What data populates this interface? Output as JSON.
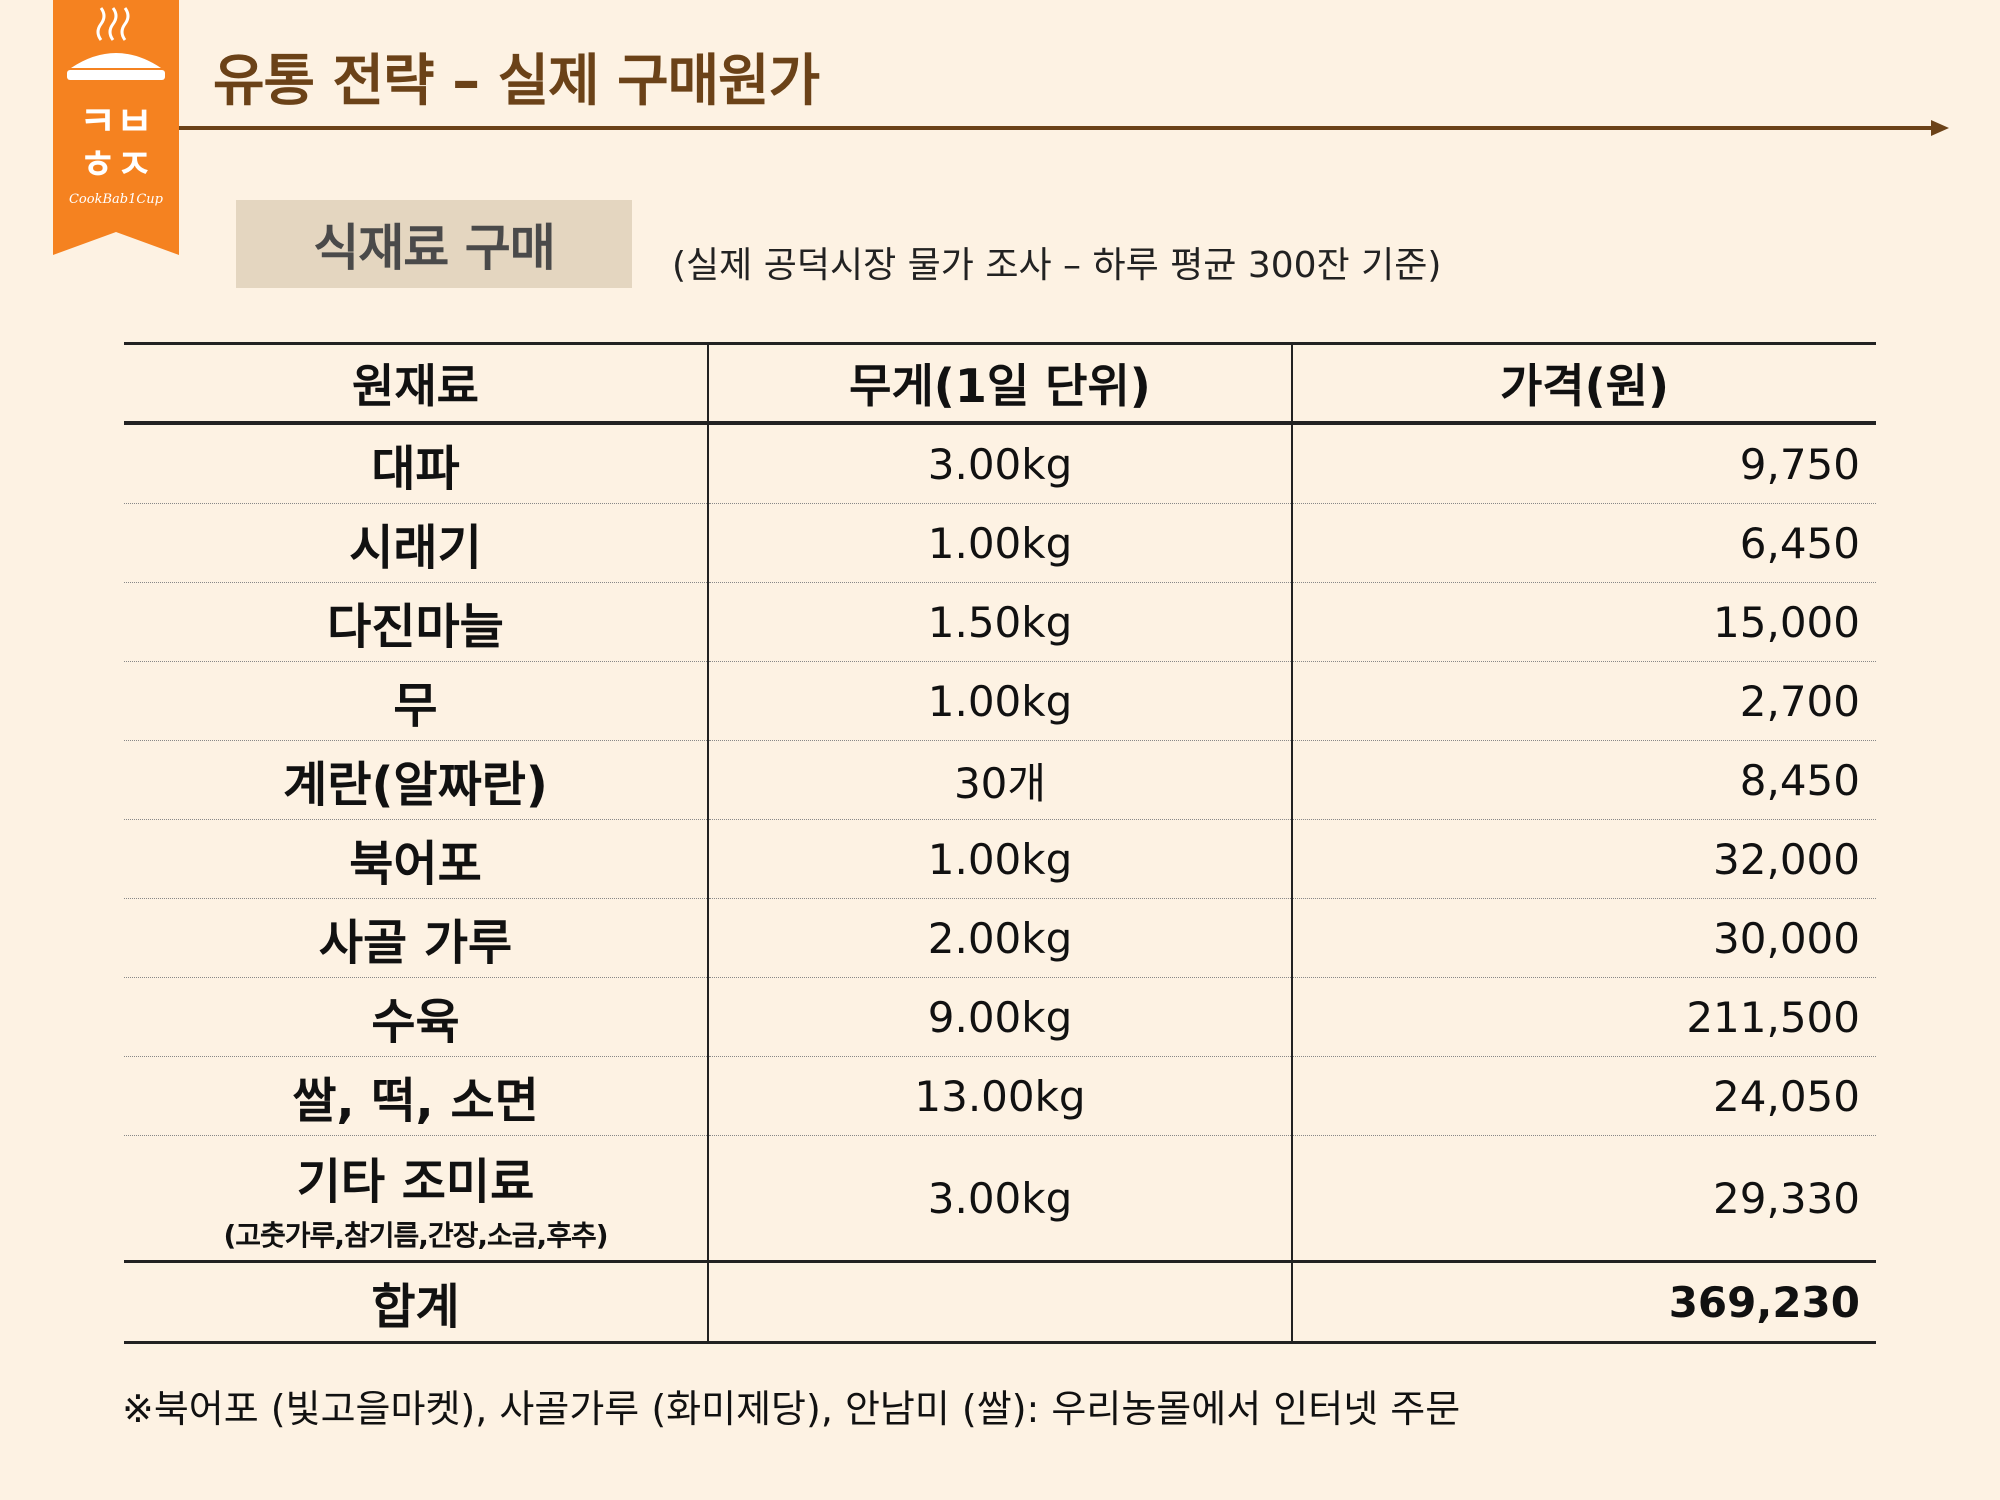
{
  "logo": {
    "text_line1": "ㅋㅂ",
    "text_line2": "ㅎㅈ",
    "script": "CookBab1Cup",
    "color": "#f58220"
  },
  "header": {
    "title": "유통 전략 – 실제 구매원가"
  },
  "section": {
    "label": "식재료 구매",
    "note": "(실제 공덕시장 물가 조사 – 하루 평균 300잔 기준)"
  },
  "table": {
    "headers": [
      "원재료",
      "무게(1일 단위)",
      "가격(원)"
    ],
    "rows": [
      {
        "name": "대파",
        "weight": "3.00kg",
        "price": "9,750"
      },
      {
        "name": "시래기",
        "weight": "1.00kg",
        "price": "6,450"
      },
      {
        "name": "다진마늘",
        "weight": "1.50kg",
        "price": "15,000"
      },
      {
        "name": "무",
        "weight": "1.00kg",
        "price": "2,700"
      },
      {
        "name": "계란(알짜란)",
        "weight": "30개",
        "price": "8,450"
      },
      {
        "name": "북어포",
        "weight": "1.00kg",
        "price": "32,000"
      },
      {
        "name": "사골 가루",
        "weight": "2.00kg",
        "price": "30,000"
      },
      {
        "name": "수육",
        "weight": "9.00kg",
        "price": "211,500"
      },
      {
        "name": "쌀, 떡, 소면",
        "weight": "13.00kg",
        "price": "24,050"
      },
      {
        "name": "기타 조미료",
        "sub": "(고춧가루,참기름,간장,소금,후추)",
        "weight": "3.00kg",
        "price": "29,330"
      }
    ],
    "total": {
      "label": "합계",
      "weight": "",
      "price": "369,230"
    }
  },
  "footnote": "※북어포 (빛고을마켓), 사골가루 (화미제당), 안남미 (쌀): 우리농몰에서 인터넷 주문"
}
